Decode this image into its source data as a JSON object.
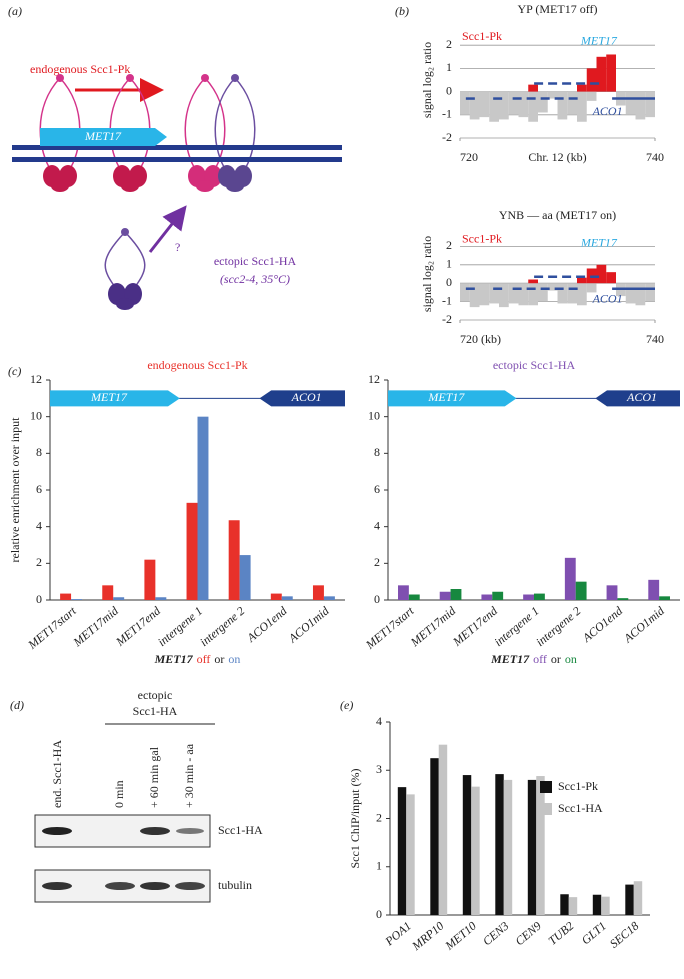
{
  "panel_labels": {
    "a": "(a)",
    "b": "(b)",
    "c": "(c)",
    "d": "(d)",
    "e": "(e)"
  },
  "panel_a": {
    "arrow_label": "endogenous Scc1-Pk",
    "gene": "MET17",
    "question": "?",
    "ectopic_label": "ectopic Scc1-HA",
    "ectopic_condition": "(scc2-4, 35°C)"
  },
  "panel_d": {
    "header": [
      "ectopic",
      "Scc1-HA"
    ],
    "lanes": [
      "end. Scc1-HA",
      "0 min",
      "+ 60 min gal",
      "+ 30 min - aa"
    ],
    "rows": [
      "Scc1-HA",
      "tubulin"
    ]
  },
  "chart_data": [
    {
      "type": "track",
      "title": "YP (MET17 off)",
      "y_label": "signal log₂ ratio",
      "x_label": "Chr. 12 (kb)",
      "x": [
        720.5,
        721.5,
        722.5,
        723.5,
        724.5,
        725.5,
        726.5,
        727.5,
        728.5,
        729.5,
        730.5,
        731.5,
        732.5,
        733.5,
        734.5,
        735.5,
        736.5,
        737.5,
        738.5,
        739.5
      ],
      "values": [
        -1.0,
        -1.2,
        -1.1,
        -1.3,
        -1.2,
        -1.0,
        -1.1,
        -1.3,
        -0.9,
        -0.3,
        -1.2,
        -1.0,
        -1.3,
        -0.4,
        0.2,
        0.3,
        -0.6,
        -1.0,
        -1.2,
        -1.1
      ],
      "color": "#c8c8c8",
      "series": [
        {
          "name": "Scc1-Pk",
          "color": "#e0191f",
          "values": [
            null,
            null,
            null,
            null,
            null,
            null,
            null,
            0.3,
            null,
            null,
            null,
            null,
            0.3,
            1.0,
            1.5,
            1.6,
            null,
            null,
            null,
            null
          ]
        }
      ],
      "annotations": [
        "MET17",
        "ACO1"
      ],
      "xlim": [
        720,
        740
      ],
      "xticks": [
        720,
        740
      ],
      "ylim": [
        -2,
        3
      ],
      "yticks": [
        -2,
        -1,
        0,
        1,
        2
      ],
      "grid": true
    },
    {
      "type": "track",
      "title": "YNB — aa (MET17 on)",
      "y_label": "signal log₂ ratio",
      "x": [
        720.5,
        721.5,
        722.5,
        723.5,
        724.5,
        725.5,
        726.5,
        727.5,
        728.5,
        729.5,
        730.5,
        731.5,
        732.5,
        733.5,
        734.5,
        735.5,
        736.5,
        737.5,
        738.5,
        739.5
      ],
      "values": [
        -1.0,
        -1.3,
        -1.2,
        -1.1,
        -1.3,
        -1.1,
        -1.2,
        -1.2,
        -1.0,
        -0.4,
        -1.1,
        -1.1,
        -1.2,
        -0.5,
        0.1,
        0.2,
        -0.7,
        -1.1,
        -1.2,
        -1.0
      ],
      "color": "#c8c8c8",
      "series": [
        {
          "name": "Scc1-Pk",
          "color": "#e0191f",
          "values": [
            null,
            null,
            null,
            null,
            null,
            null,
            null,
            0.2,
            null,
            null,
            null,
            null,
            0.3,
            0.8,
            1.0,
            0.6,
            null,
            null,
            null,
            null
          ]
        }
      ],
      "annotations": [
        "MET17",
        "ACO1"
      ],
      "xlim": [
        720,
        740
      ],
      "xticks": [
        {
          "value": 720,
          "label": "720 (kb)"
        },
        740
      ],
      "ylim": [
        -2,
        3
      ],
      "yticks": [
        -2,
        -1,
        0,
        1,
        2
      ],
      "grid": true
    },
    {
      "type": "bar",
      "title": "endogenous Scc1-Pk",
      "y_label": "relative enrichment over input",
      "categories": [
        "MET17start",
        "MET17mid",
        "MET17end",
        "intergene 1",
        "intergene 2",
        "ACO1end",
        "ACO1mid"
      ],
      "series": [
        {
          "name": "off",
          "color": "#e8312a",
          "values": [
            0.35,
            0.8,
            2.2,
            5.3,
            4.35,
            0.35,
            0.8
          ]
        },
        {
          "name": "on",
          "color": "#5b84c4",
          "values": [
            0.05,
            0.15,
            0.15,
            10,
            2.45,
            0.2,
            0.2
          ]
        }
      ],
      "legend_prefix": "MET17",
      "legend_joiner": "or",
      "annotations": [
        "MET17",
        "ACO1"
      ],
      "ylim": [
        0,
        12
      ],
      "yticks": [
        0,
        2,
        4,
        6,
        8,
        10,
        12
      ]
    },
    {
      "type": "bar",
      "title": "ectopic Scc1-HA",
      "categories": [
        "MET17start",
        "MET17mid",
        "MET17end",
        "intergene 1",
        "intergene 2",
        "ACO1end",
        "ACO1mid"
      ],
      "series": [
        {
          "name": "off",
          "color": "#7f4fb0",
          "values": [
            0.8,
            0.45,
            0.3,
            0.3,
            2.3,
            0.8,
            1.1
          ]
        },
        {
          "name": "on",
          "color": "#17883f",
          "values": [
            0.3,
            0.6,
            0.45,
            0.35,
            1.0,
            0.1,
            0.2
          ]
        }
      ],
      "legend_prefix": "MET17",
      "legend_joiner": "or",
      "annotations": [
        "MET17",
        "ACO1"
      ],
      "ylim": [
        0,
        12
      ],
      "yticks": [
        0,
        2,
        4,
        6,
        8,
        10,
        12
      ]
    },
    {
      "type": "bar",
      "y_label": "Scc1 ChIP/input (%)",
      "categories": [
        "POA1",
        "MRP10",
        "MET10",
        "CEN3",
        "CEN9",
        "TUB2",
        "GLT1",
        "SEC18"
      ],
      "series": [
        {
          "name": "Scc1-Pk",
          "color": "#111111",
          "values": [
            2.65,
            3.25,
            2.9,
            2.92,
            2.8,
            0.43,
            0.42,
            0.63
          ]
        },
        {
          "name": "Scc1-HA",
          "color": "#c4c4c4",
          "values": [
            2.5,
            3.53,
            2.66,
            2.8,
            2.88,
            0.37,
            0.38,
            0.7
          ]
        }
      ],
      "ylim": [
        0,
        4
      ],
      "yticks": [
        0,
        1,
        2,
        3,
        4
      ]
    }
  ]
}
